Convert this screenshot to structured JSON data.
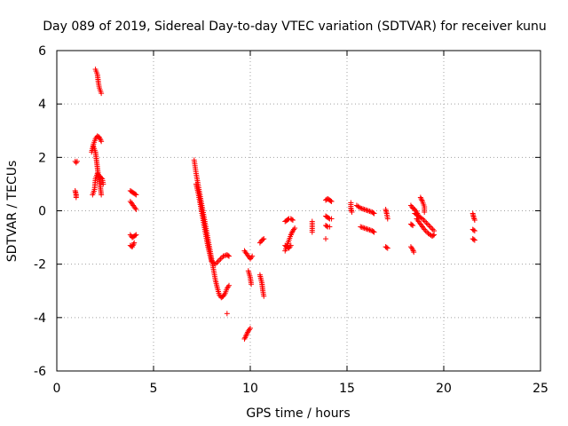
{
  "chart_data": {
    "type": "scatter",
    "title": "Day 089 of 2019, Sidereal Day-to-day VTEC variation (SDTVAR) for receiver kunu",
    "xlabel": "GPS time / hours",
    "ylabel": "SDTVAR / TECUs",
    "xlim": [
      0,
      25
    ],
    "ylim": [
      -6,
      6
    ],
    "xticks": [
      "0",
      "5",
      "10",
      "15",
      "20",
      "25"
    ],
    "yticks": [
      "-6",
      "-4",
      "-2",
      "0",
      "2",
      "4",
      "6"
    ],
    "grid": true,
    "marker": "+",
    "color": "#ff0000",
    "segments": [
      [
        [
          0.95,
          1.85
        ],
        [
          1.0,
          1.8
        ],
        [
          1.05,
          1.85
        ]
      ],
      [
        [
          0.95,
          0.75
        ],
        [
          1.0,
          0.6
        ],
        [
          1.0,
          0.5
        ]
      ],
      [
        [
          2.0,
          5.3
        ],
        [
          2.1,
          5.1
        ],
        [
          2.15,
          4.8
        ],
        [
          2.2,
          4.6
        ],
        [
          2.3,
          4.4
        ]
      ],
      [
        [
          1.8,
          2.2
        ],
        [
          1.9,
          2.5
        ],
        [
          2.0,
          2.7
        ],
        [
          2.1,
          2.8
        ],
        [
          2.2,
          2.75
        ],
        [
          2.3,
          2.6
        ]
      ],
      [
        [
          1.9,
          2.4
        ],
        [
          2.0,
          2.2
        ],
        [
          2.05,
          1.9
        ],
        [
          2.1,
          1.6
        ],
        [
          2.15,
          1.3
        ],
        [
          2.2,
          1.1
        ],
        [
          2.25,
          0.9
        ],
        [
          2.3,
          0.6
        ]
      ],
      [
        [
          1.85,
          0.6
        ],
        [
          1.95,
          0.8
        ],
        [
          2.0,
          1.2
        ],
        [
          2.1,
          1.4
        ],
        [
          2.2,
          1.3
        ],
        [
          2.35,
          1.2
        ],
        [
          2.4,
          1.0
        ]
      ],
      [
        [
          3.8,
          0.75
        ],
        [
          3.9,
          0.7
        ],
        [
          4.0,
          0.65
        ],
        [
          4.1,
          0.6
        ]
      ],
      [
        [
          3.8,
          0.35
        ],
        [
          3.9,
          0.25
        ],
        [
          4.0,
          0.15
        ],
        [
          4.1,
          0.05
        ]
      ],
      [
        [
          3.8,
          -0.9
        ],
        [
          3.9,
          -1.0
        ],
        [
          4.0,
          -0.95
        ],
        [
          4.1,
          -0.9
        ]
      ],
      [
        [
          3.8,
          -1.3
        ],
        [
          3.9,
          -1.35
        ],
        [
          4.0,
          -1.2
        ]
      ],
      [
        [
          7.1,
          1.9
        ],
        [
          7.2,
          1.4
        ],
        [
          7.3,
          1.0
        ],
        [
          7.4,
          0.6
        ],
        [
          7.5,
          0.2
        ],
        [
          7.6,
          -0.2
        ],
        [
          7.7,
          -0.6
        ],
        [
          7.8,
          -1.0
        ],
        [
          7.9,
          -1.4
        ],
        [
          8.0,
          -1.8
        ],
        [
          8.1,
          -2.2
        ],
        [
          8.2,
          -2.6
        ],
        [
          8.3,
          -2.9
        ],
        [
          8.4,
          -3.15
        ],
        [
          8.5,
          -3.25
        ],
        [
          8.6,
          -3.2
        ],
        [
          8.7,
          -3.1
        ],
        [
          8.8,
          -2.9
        ],
        [
          8.9,
          -2.8
        ]
      ],
      [
        [
          7.2,
          1.0
        ],
        [
          7.3,
          0.7
        ],
        [
          7.4,
          0.3
        ],
        [
          7.5,
          -0.1
        ],
        [
          7.6,
          -0.5
        ],
        [
          7.7,
          -0.9
        ],
        [
          7.8,
          -1.3
        ],
        [
          7.9,
          -1.6
        ],
        [
          8.0,
          -1.9
        ],
        [
          8.2,
          -2.0
        ],
        [
          8.4,
          -1.85
        ],
        [
          8.6,
          -1.7
        ],
        [
          8.8,
          -1.65
        ],
        [
          8.9,
          -1.7
        ]
      ],
      [
        [
          8.8,
          -3.85
        ]
      ],
      [
        [
          9.7,
          -1.5
        ],
        [
          9.8,
          -1.6
        ],
        [
          9.9,
          -1.7
        ],
        [
          10.0,
          -1.8
        ],
        [
          10.1,
          -1.7
        ]
      ],
      [
        [
          9.9,
          -2.25
        ],
        [
          10.0,
          -2.5
        ],
        [
          10.05,
          -2.75
        ]
      ],
      [
        [
          9.7,
          -4.8
        ],
        [
          9.8,
          -4.65
        ],
        [
          9.9,
          -4.5
        ],
        [
          10.0,
          -4.4
        ]
      ],
      [
        [
          10.5,
          -1.2
        ],
        [
          10.6,
          -1.1
        ],
        [
          10.7,
          -1.05
        ]
      ],
      [
        [
          10.5,
          -2.4
        ],
        [
          10.6,
          -2.7
        ],
        [
          10.65,
          -3.0
        ],
        [
          10.7,
          -3.2
        ]
      ],
      [
        [
          11.8,
          -0.4
        ],
        [
          11.9,
          -0.35
        ],
        [
          12.0,
          -0.3
        ],
        [
          12.1,
          -0.3
        ],
        [
          12.2,
          -0.35
        ]
      ],
      [
        [
          11.8,
          -1.5
        ],
        [
          11.9,
          -1.3
        ],
        [
          12.0,
          -1.1
        ],
        [
          12.1,
          -0.9
        ],
        [
          12.2,
          -0.75
        ],
        [
          12.3,
          -0.65
        ]
      ],
      [
        [
          11.8,
          -1.3
        ],
        [
          11.9,
          -1.35
        ],
        [
          12.0,
          -1.4
        ],
        [
          12.1,
          -1.3
        ]
      ],
      [
        [
          13.2,
          -0.4
        ],
        [
          13.2,
          -0.6
        ],
        [
          13.2,
          -0.8
        ]
      ],
      [
        [
          13.9,
          -1.05
        ]
      ],
      [
        [
          13.9,
          0.4
        ],
        [
          14.0,
          0.45
        ],
        [
          14.1,
          0.4
        ],
        [
          14.2,
          0.35
        ]
      ],
      [
        [
          13.9,
          -0.2
        ],
        [
          14.0,
          -0.25
        ],
        [
          14.1,
          -0.3
        ],
        [
          14.2,
          -0.3
        ]
      ],
      [
        [
          13.9,
          -0.55
        ],
        [
          14.0,
          -0.6
        ],
        [
          14.1,
          -0.6
        ]
      ],
      [
        [
          15.2,
          0.3
        ],
        [
          15.2,
          0.1
        ],
        [
          15.25,
          -0.05
        ]
      ],
      [
        [
          15.5,
          0.2
        ],
        [
          15.7,
          0.1
        ],
        [
          15.9,
          0.05
        ],
        [
          16.1,
          0.0
        ],
        [
          16.3,
          -0.05
        ],
        [
          16.4,
          -0.1
        ]
      ],
      [
        [
          15.7,
          -0.6
        ],
        [
          15.9,
          -0.65
        ],
        [
          16.1,
          -0.7
        ],
        [
          16.3,
          -0.75
        ],
        [
          16.4,
          -0.8
        ]
      ],
      [
        [
          17.0,
          0.05
        ],
        [
          17.05,
          -0.1
        ],
        [
          17.1,
          -0.3
        ]
      ],
      [
        [
          17.0,
          -1.35
        ],
        [
          17.1,
          -1.4
        ]
      ],
      [
        [
          18.3,
          0.2
        ],
        [
          18.4,
          0.1
        ],
        [
          18.5,
          0.05
        ],
        [
          18.6,
          -0.05
        ],
        [
          18.7,
          -0.2
        ]
      ],
      [
        [
          18.3,
          -0.5
        ],
        [
          18.4,
          -0.55
        ]
      ],
      [
        [
          18.3,
          -1.35
        ],
        [
          18.4,
          -1.45
        ],
        [
          18.45,
          -1.55
        ]
      ],
      [
        [
          18.5,
          -0.1
        ],
        [
          18.7,
          -0.2
        ],
        [
          18.9,
          -0.3
        ],
        [
          19.1,
          -0.45
        ],
        [
          19.3,
          -0.6
        ],
        [
          19.5,
          -0.75
        ]
      ],
      [
        [
          18.6,
          -0.3
        ],
        [
          18.8,
          -0.5
        ],
        [
          19.0,
          -0.7
        ],
        [
          19.2,
          -0.85
        ],
        [
          19.4,
          -0.95
        ],
        [
          19.5,
          -0.9
        ]
      ],
      [
        [
          18.8,
          0.5
        ],
        [
          18.9,
          0.35
        ],
        [
          19.0,
          0.15
        ],
        [
          19.0,
          -0.05
        ]
      ],
      [
        [
          21.5,
          -0.1
        ],
        [
          21.55,
          -0.25
        ],
        [
          21.6,
          -0.35
        ]
      ],
      [
        [
          21.5,
          -0.7
        ],
        [
          21.6,
          -0.75
        ]
      ],
      [
        [
          21.5,
          -1.05
        ],
        [
          21.6,
          -1.1
        ]
      ]
    ]
  }
}
